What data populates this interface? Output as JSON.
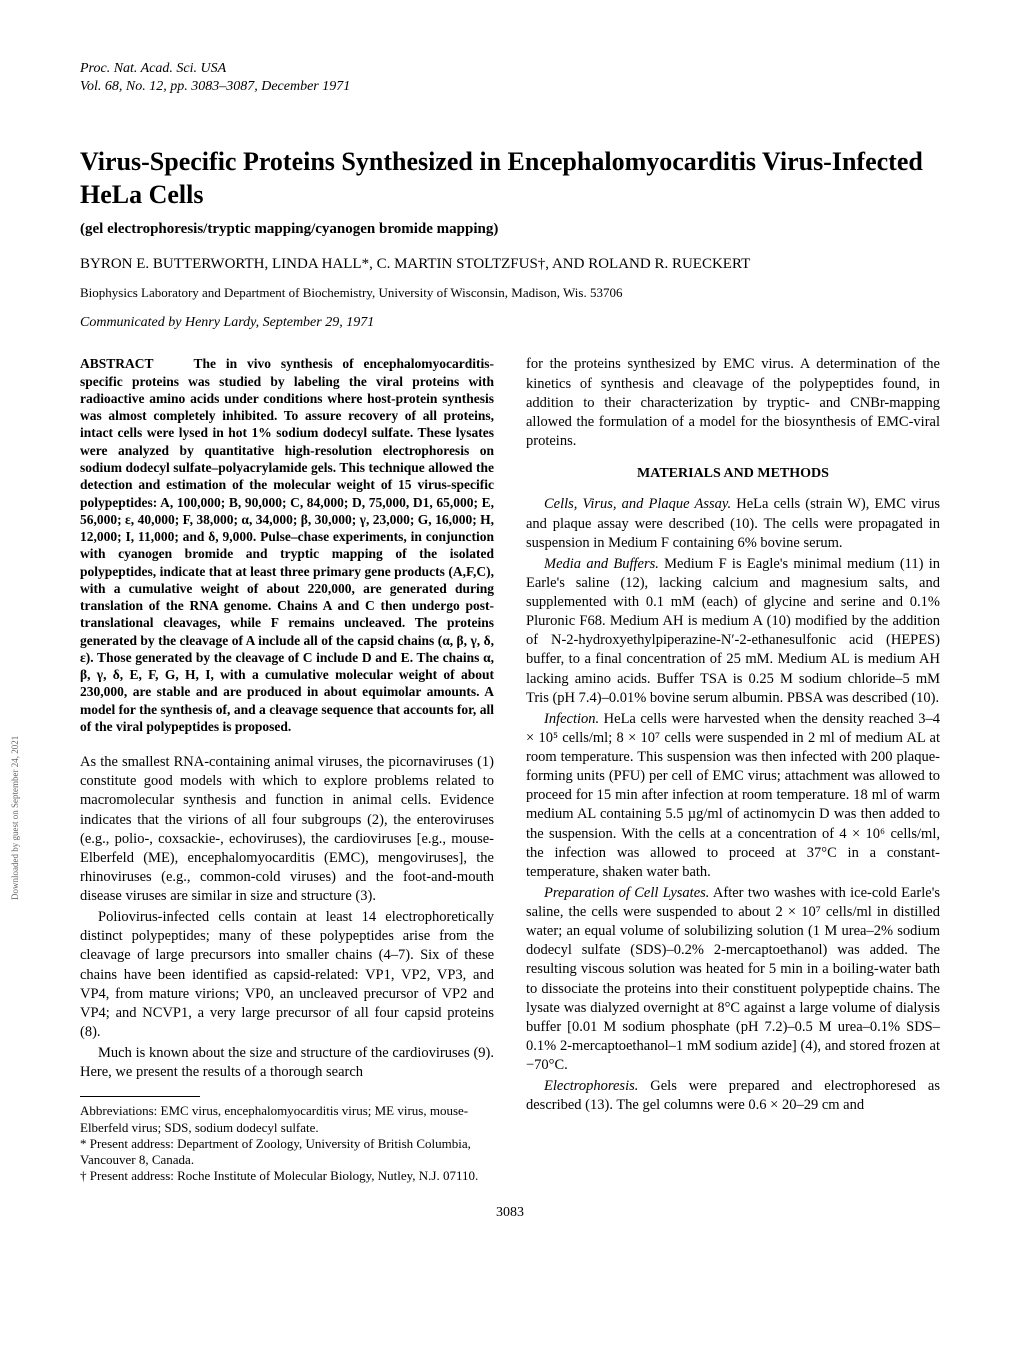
{
  "journal": {
    "line1": "Proc. Nat. Acad. Sci. USA",
    "line2": "Vol. 68, No. 12, pp. 3083–3087, December 1971"
  },
  "title": "Virus-Specific Proteins Synthesized in Encephalomyocarditis Virus-Infected HeLa Cells",
  "subtitle": "(gel electrophoresis/tryptic mapping/cyanogen bromide mapping)",
  "authors": "BYRON E. BUTTERWORTH, LINDA HALL*, C. MARTIN STOLTZFUS†, AND ROLAND R. RUECKERT",
  "affiliation": "Biophysics Laboratory and Department of Biochemistry, University of Wisconsin, Madison, Wis. 53706",
  "communicated": "Communicated by Henry Lardy, September 29, 1971",
  "abstract_label": "ABSTRACT",
  "abstract": "The in vivo synthesis of encephalomyocarditis-specific proteins was studied by labeling the viral proteins with radioactive amino acids under conditions where host-protein synthesis was almost completely inhibited. To assure recovery of all proteins, intact cells were lysed in hot 1% sodium dodecyl sulfate. These lysates were analyzed by quantitative high-resolution electrophoresis on sodium dodecyl sulfate–polyacrylamide gels. This technique allowed the detection and estimation of the molecular weight of 15 virus-specific polypeptides: A, 100,000; B, 90,000; C, 84,000; D, 75,000, D1, 65,000; E, 56,000; ε, 40,000; F, 38,000; α, 34,000; β, 30,000; γ, 23,000; G, 16,000; H, 12,000; I, 11,000; and δ, 9,000. Pulse–chase experiments, in conjunction with cyanogen bromide and tryptic mapping of the isolated polypeptides, indicate that at least three primary gene products (A,F,C), with a cumulative weight of about 220,000, are generated during translation of the RNA genome. Chains A and C then undergo post-translational cleavages, while F remains uncleaved. The proteins generated by the cleavage of A include all of the capsid chains (α, β, γ, δ, ε). Those generated by the cleavage of C include D and E. The chains α, β, γ, δ, E, F, G, H, I, with a cumulative molecular weight of about 230,000, are stable and are produced in about equimolar amounts. A model for the synthesis of, and a cleavage sequence that accounts for, all of the viral polypeptides is proposed.",
  "left_paras": [
    "As the smallest RNA-containing animal viruses, the picornaviruses (1) constitute good models with which to explore problems related to macromolecular synthesis and function in animal cells. Evidence indicates that the virions of all four subgroups (2), the enteroviruses (e.g., polio-, coxsackie-, echoviruses), the cardioviruses [e.g., mouse-Elberfeld (ME), encephalomyocarditis (EMC), mengoviruses], the rhinoviruses (e.g., common-cold viruses) and the foot-and-mouth disease viruses are similar in size and structure (3).",
    "Poliovirus-infected cells contain at least 14 electrophoretically distinct polypeptides; many of these polypeptides arise from the cleavage of large precursors into smaller chains (4–7). Six of these chains have been identified as capsid-related: VP1, VP2, VP3, and VP4, from mature virions; VP0, an uncleaved precursor of VP2 and VP4; and NCVP1, a very large precursor of all four capsid proteins (8).",
    "Much is known about the size and structure of the cardioviruses (9). Here, we present the results of a thorough search"
  ],
  "footnotes": [
    "Abbreviations: EMC virus, encephalomyocarditis virus; ME virus, mouse-Elberfeld virus; SDS, sodium dodecyl sulfate.",
    "* Present address: Department of Zoology, University of British Columbia, Vancouver 8, Canada.",
    "† Present address: Roche Institute of Molecular Biology, Nutley, N.J. 07110."
  ],
  "right_intro": "for the proteins synthesized by EMC virus. A determination of the kinetics of synthesis and cleavage of the polypeptides found, in addition to their characterization by tryptic- and CNBr-mapping allowed the formulation of a model for the biosynthesis of EMC-viral proteins.",
  "section_head": "MATERIALS AND METHODS",
  "methods": [
    {
      "head": "Cells, Virus, and Plaque Assay.",
      "body": " HeLa cells (strain W), EMC virus and plaque assay were described (10). The cells were propagated in suspension in Medium F containing 6% bovine serum."
    },
    {
      "head": "Media and Buffers.",
      "body": " Medium F is Eagle's minimal medium (11) in Earle's saline (12), lacking calcium and magnesium salts, and supplemented with 0.1 mM (each) of glycine and serine and 0.1% Pluronic F68. Medium AH is medium A (10) modified by the addition of N-2-hydroxyethylpiperazine-N′-2-ethanesulfonic acid (HEPES) buffer, to a final concentration of 25 mM. Medium AL is medium AH lacking amino acids. Buffer TSA is 0.25 M sodium chloride–5 mM Tris (pH 7.4)–0.01% bovine serum albumin. PBSA was described (10)."
    },
    {
      "head": "Infection.",
      "body": " HeLa cells were harvested when the density reached 3–4 × 10⁵ cells/ml; 8 × 10⁷ cells were suspended in 2 ml of medium AL at room temperature. This suspension was then infected with 200 plaque-forming units (PFU) per cell of EMC virus; attachment was allowed to proceed for 15 min after infection at room temperature. 18 ml of warm medium AL containing 5.5 µg/ml of actinomycin D was then added to the suspension. With the cells at a concentration of 4 × 10⁶ cells/ml, the infection was allowed to proceed at 37°C in a constant-temperature, shaken water bath."
    },
    {
      "head": "Preparation of Cell Lysates.",
      "body": " After two washes with ice-cold Earle's saline, the cells were suspended to about 2 × 10⁷ cells/ml in distilled water; an equal volume of solubilizing solution (1 M urea–2% sodium dodecyl sulfate (SDS)–0.2% 2-mercaptoethanol) was added. The resulting viscous solution was heated for 5 min in a boiling-water bath to dissociate the proteins into their constituent polypeptide chains. The lysate was dialyzed overnight at 8°C against a large volume of dialysis buffer [0.01 M sodium phosphate (pH 7.2)–0.5 M urea–0.1% SDS–0.1% 2-mercaptoethanol–1 mM sodium azide] (4), and stored frozen at −70°C."
    },
    {
      "head": "Electrophoresis.",
      "body": " Gels were prepared and electrophoresed as described (13). The gel columns were 0.6 × 20–29 cm and"
    }
  ],
  "page_number": "3083",
  "sideways": "Downloaded by guest on September 24, 2021"
}
